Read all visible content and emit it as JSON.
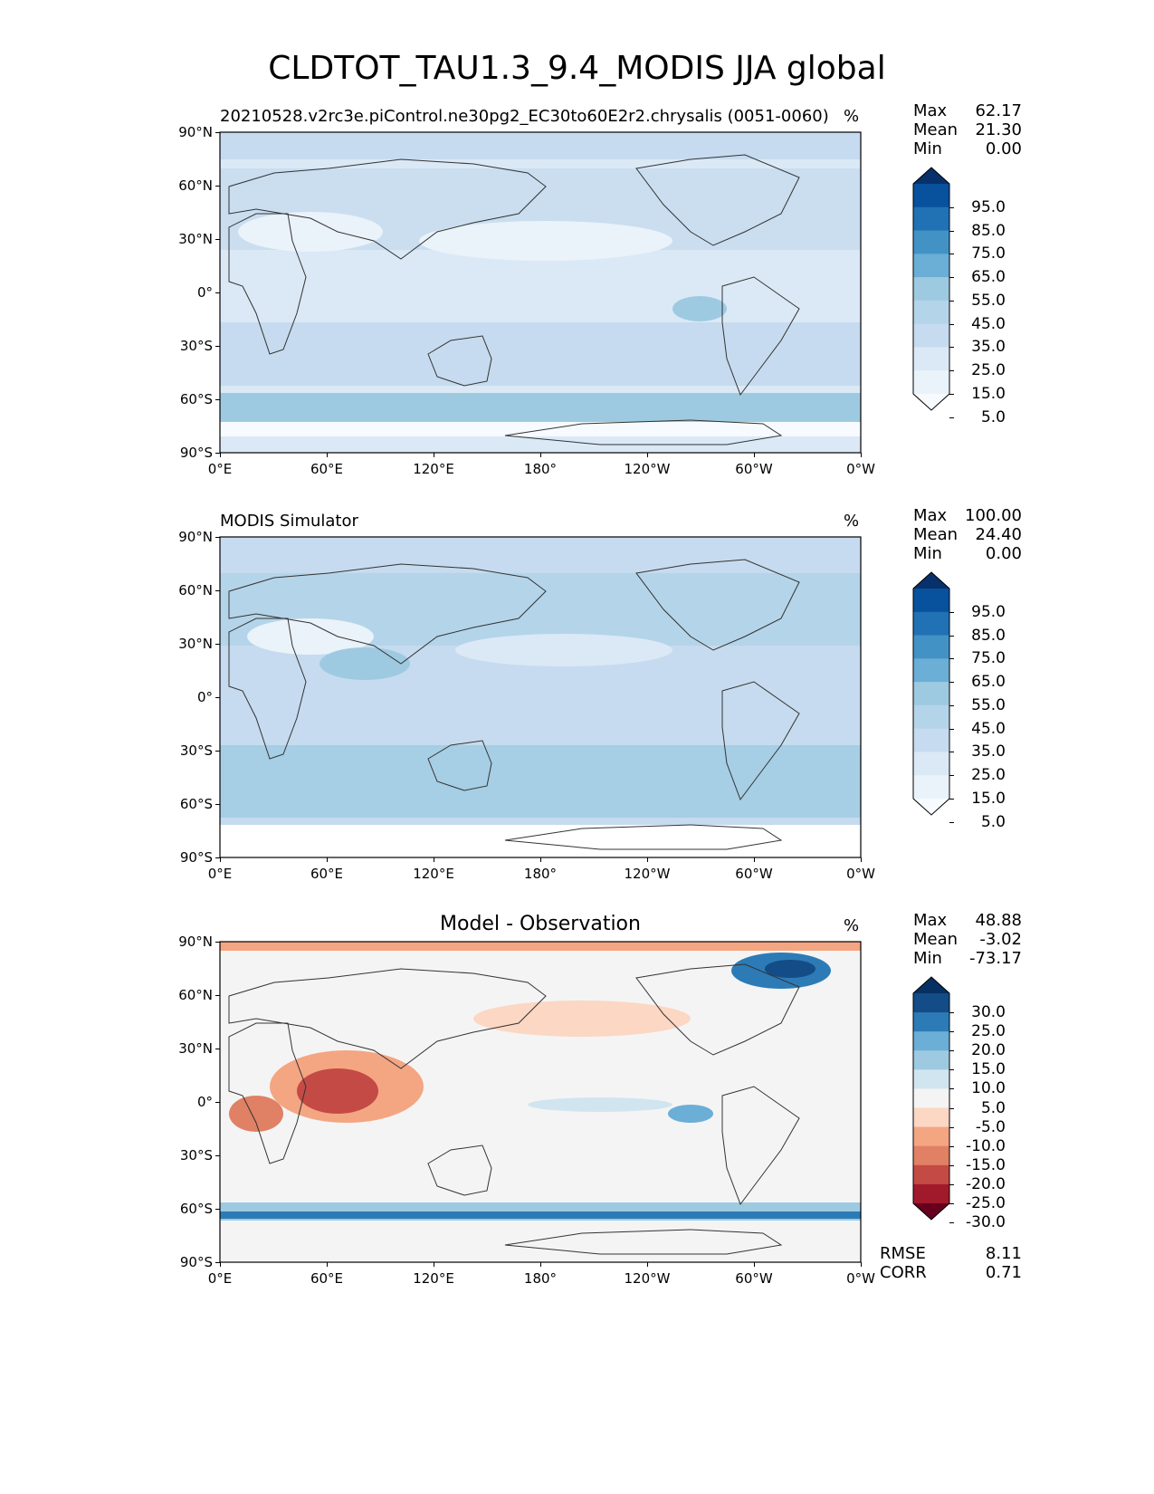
{
  "title": "CLDTOT_TAU1.3_9.4_MODIS JJA global",
  "ticks": {
    "lat": [
      "90°N",
      "60°N",
      "30°N",
      "0°",
      "30°S",
      "60°S",
      "90°S"
    ],
    "lon": [
      "0°E",
      "60°E",
      "120°E",
      "180°",
      "120°W",
      "60°W",
      "0°W"
    ]
  },
  "panels": [
    {
      "title": "20210528.v2rc3e.piControl.ne30pg2_EC30to60E2r2.chrysalis (0051-0060)",
      "units": "%",
      "stats": {
        "max_label": "Max",
        "max": "62.17",
        "mean_label": "Mean",
        "mean": "21.30",
        "min_label": "Min",
        "min": "0.00"
      },
      "colorbar": {
        "labels": [
          "95.0",
          "85.0",
          "75.0",
          "65.0",
          "55.0",
          "45.0",
          "35.0",
          "25.0",
          "15.0",
          "5.0"
        ],
        "colors_top_to_bottom": [
          "#08306b",
          "#08519c",
          "#2171b5",
          "#4292c6",
          "#6baed6",
          "#9ecae1",
          "#b4d4e9",
          "#c6dbef",
          "#dbe9f6",
          "#eaf2fa",
          "#f7fbff"
        ]
      }
    },
    {
      "title": "MODIS Simulator",
      "units": "%",
      "stats": {
        "max_label": "Max",
        "max": "100.00",
        "mean_label": "Mean",
        "mean": "24.40",
        "min_label": "Min",
        "min": "0.00"
      },
      "colorbar": {
        "labels": [
          "95.0",
          "85.0",
          "75.0",
          "65.0",
          "55.0",
          "45.0",
          "35.0",
          "25.0",
          "15.0",
          "5.0"
        ],
        "colors_top_to_bottom": [
          "#08306b",
          "#08519c",
          "#2171b5",
          "#4292c6",
          "#6baed6",
          "#9ecae1",
          "#b4d4e9",
          "#c6dbef",
          "#dbe9f6",
          "#eaf2fa",
          "#f7fbff"
        ]
      }
    },
    {
      "title": "Model - Observation",
      "units": "%",
      "stats": {
        "max_label": "Max",
        "max": "48.88",
        "mean_label": "Mean",
        "mean": "-3.02",
        "min_label": "Min",
        "min": "-73.17"
      },
      "colorbar": {
        "labels": [
          "30.0",
          "25.0",
          "20.0",
          "15.0",
          "10.0",
          "5.0",
          "-5.0",
          "-10.0",
          "-15.0",
          "-20.0",
          "-25.0",
          "-30.0"
        ],
        "colors_top_to_bottom": [
          "#053061",
          "#134c87",
          "#2c7bb6",
          "#6baed6",
          "#9ecae1",
          "#d1e5f0",
          "#f4f4f4",
          "#fbd7c4",
          "#f4a582",
          "#e08064",
          "#c44a45",
          "#a11a2b",
          "#67001f"
        ]
      },
      "metrics": {
        "rmse_label": "RMSE",
        "rmse": "8.11",
        "corr_label": "CORR",
        "corr": "0.71"
      }
    }
  ],
  "chart_data": [
    {
      "type": "heatmap",
      "title": "20210528.v2rc3e.piControl.ne30pg2_EC30to60E2r2.chrysalis (0051-0060)",
      "units": "%",
      "x_ticks": [
        "0°E",
        "60°E",
        "120°E",
        "180°",
        "120°W",
        "60°W",
        "0°W"
      ],
      "y_ticks": [
        "90°N",
        "60°N",
        "30°N",
        "0°",
        "30°S",
        "60°S",
        "90°S"
      ],
      "xlim": [
        0,
        360
      ],
      "ylim": [
        -90,
        90
      ],
      "levels": [
        5,
        15,
        25,
        35,
        45,
        55,
        65,
        75,
        85,
        95
      ],
      "max": 62.17,
      "mean": 21.3,
      "min": 0.0
    },
    {
      "type": "heatmap",
      "title": "MODIS Simulator",
      "units": "%",
      "x_ticks": [
        "0°E",
        "60°E",
        "120°E",
        "180°",
        "120°W",
        "60°W",
        "0°W"
      ],
      "y_ticks": [
        "90°N",
        "60°N",
        "30°N",
        "0°",
        "30°S",
        "60°S",
        "90°S"
      ],
      "xlim": [
        0,
        360
      ],
      "ylim": [
        -90,
        90
      ],
      "levels": [
        5,
        15,
        25,
        35,
        45,
        55,
        65,
        75,
        85,
        95
      ],
      "max": 100.0,
      "mean": 24.4,
      "min": 0.0
    },
    {
      "type": "heatmap",
      "title": "Model - Observation",
      "units": "%",
      "x_ticks": [
        "0°E",
        "60°E",
        "120°E",
        "180°",
        "120°W",
        "60°W",
        "0°W"
      ],
      "y_ticks": [
        "90°N",
        "60°N",
        "30°N",
        "0°",
        "30°S",
        "60°S",
        "90°S"
      ],
      "xlim": [
        0,
        360
      ],
      "ylim": [
        -90,
        90
      ],
      "levels": [
        -30,
        -25,
        -20,
        -15,
        -10,
        -5,
        5,
        10,
        15,
        20,
        25,
        30
      ],
      "max": 48.88,
      "mean": -3.02,
      "min": -73.17,
      "rmse": 8.11,
      "corr": 0.71
    }
  ]
}
